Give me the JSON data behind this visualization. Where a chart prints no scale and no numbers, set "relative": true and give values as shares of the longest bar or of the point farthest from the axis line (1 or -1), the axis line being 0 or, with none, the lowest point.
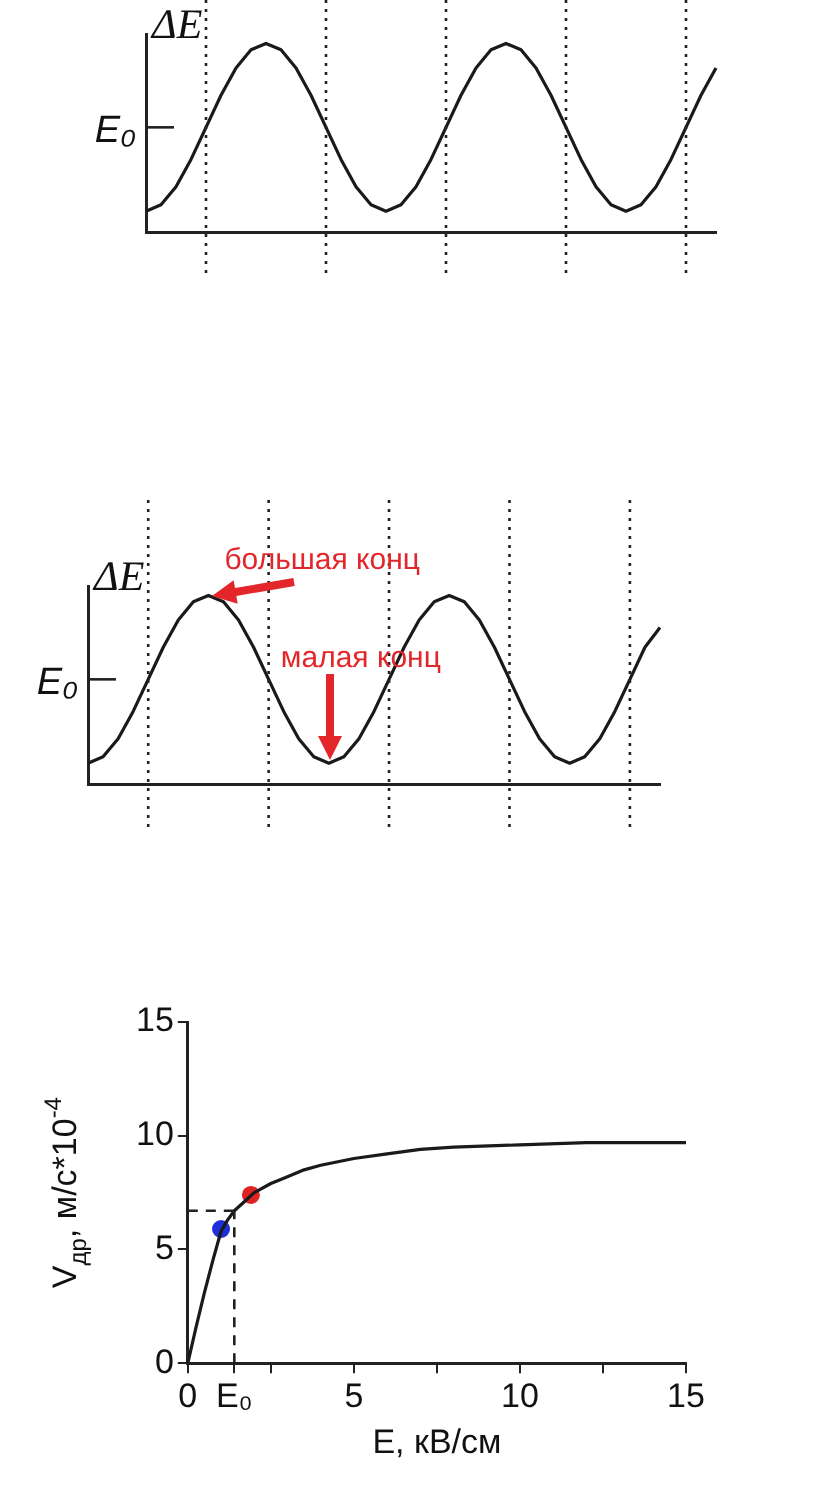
{
  "chart_data": [
    {
      "type": "line",
      "relative": true,
      "ylabel": "ΔE",
      "categories": [
        null,
        null,
        null,
        null,
        null,
        null,
        null,
        null,
        null,
        null,
        null,
        null,
        null,
        null,
        null,
        null,
        null,
        null,
        null,
        null,
        null,
        null,
        null,
        null,
        null,
        null,
        null,
        null,
        null,
        null,
        null,
        null,
        null,
        null,
        null,
        null,
        null,
        null,
        null
      ],
      "series": [
        {
          "color": "#1a1a1a",
          "values": [
            0.11,
            0.144,
            0.24,
            0.385,
            0.555,
            0.725,
            0.87,
            0.966,
            1,
            0.966,
            0.87,
            0.725,
            0.555,
            0.385,
            0.24,
            0.144,
            0.11,
            0.144,
            0.24,
            0.385,
            0.555,
            0.725,
            0.87,
            0.966,
            1,
            0.966,
            0.87,
            0.725,
            0.555,
            0.385,
            0.24,
            0.144,
            0.11,
            0.144,
            0.24,
            0.385,
            0.555,
            0.725,
            0.87
          ]
        }
      ],
      "ref_lines": [
        {
          "axis": "y",
          "value": 0.555,
          "label": "E₀"
        }
      ],
      "legend": false,
      "grid": "x"
    },
    {
      "type": "line",
      "relative": true,
      "ylabel": "ΔE",
      "categories": [
        null,
        null,
        null,
        null,
        null,
        null,
        null,
        null,
        null,
        null,
        null,
        null,
        null,
        null,
        null,
        null,
        null,
        null,
        null,
        null,
        null,
        null,
        null,
        null,
        null,
        null,
        null,
        null,
        null,
        null,
        null,
        null,
        null,
        null,
        null,
        null,
        null,
        null,
        null
      ],
      "series": [
        {
          "color": "#1a1a1a",
          "values": [
            0.11,
            0.144,
            0.24,
            0.385,
            0.555,
            0.725,
            0.87,
            0.966,
            1,
            0.966,
            0.87,
            0.725,
            0.555,
            0.385,
            0.24,
            0.144,
            0.11,
            0.144,
            0.24,
            0.385,
            0.555,
            0.725,
            0.87,
            0.966,
            1,
            0.966,
            0.87,
            0.725,
            0.555,
            0.385,
            0.24,
            0.144,
            0.11,
            0.144,
            0.24,
            0.385,
            0.555,
            0.725,
            0.83
          ]
        }
      ],
      "ref_lines": [
        {
          "axis": "y",
          "value": 0.555,
          "label": "E₀"
        }
      ],
      "annotations": [
        "большая конц",
        "малая конц"
      ],
      "legend": false,
      "grid": "x"
    },
    {
      "type": "line",
      "xlabel": "E, кВ/см",
      "ylabel": "V$_{др}$, м/с*10$^{-4}$",
      "x": [
        0,
        0.25,
        0.5,
        0.75,
        1,
        1.2,
        1.4,
        1.7,
        2,
        2.5,
        3,
        3.5,
        4,
        5,
        6,
        7,
        8,
        10,
        12,
        15
      ],
      "xlim": [
        0,
        15
      ],
      "ylim": [
        0,
        15
      ],
      "xticks": [
        0,
        {
          "value": 1.4,
          "label": "E₀"
        },
        {
          "value": 2.5,
          "label": null
        },
        5,
        {
          "value": 7.5,
          "label": null
        },
        10,
        {
          "value": 12.5,
          "label": null
        },
        15
      ],
      "yticks": [
        0,
        5,
        10,
        15
      ],
      "series": [
        {
          "type": "line",
          "color": "#1a1a1a",
          "values": [
            0,
            1.6,
            3.1,
            4.5,
            5.8,
            6.3,
            6.7,
            7.1,
            7.5,
            7.9,
            8.2,
            8.5,
            8.7,
            9.0,
            9.2,
            9.4,
            9.5,
            9.6,
            9.7,
            9.7
          ]
        },
        {
          "type": "scatter",
          "color": "#1f2fd8",
          "marker": "circle",
          "x": [
            1
          ],
          "values": [
            5.9
          ]
        },
        {
          "type": "scatter",
          "color": "#e02424",
          "marker": "circle",
          "x": [
            1.9
          ],
          "values": [
            7.4
          ]
        }
      ],
      "ref_lines": [
        {
          "axis": "x",
          "value": 1.4,
          "line_style": "dashed"
        },
        {
          "axis": "y",
          "value": 6.7,
          "line_style": "dashed"
        }
      ],
      "legend": false,
      "grid": false
    }
  ]
}
